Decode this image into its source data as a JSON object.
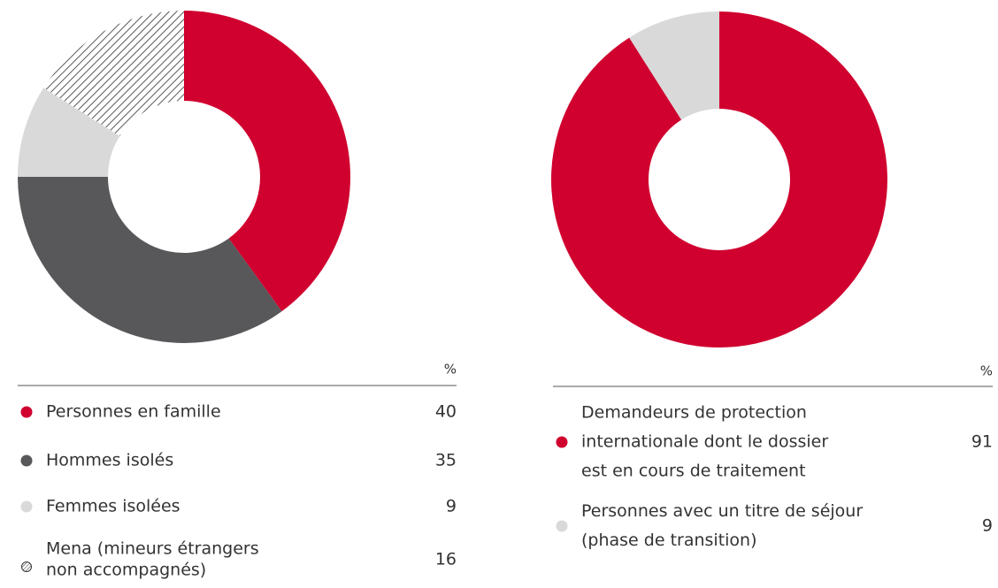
{
  "chart_data": [
    {
      "type": "pie",
      "unit": "%",
      "labels": [
        [
          "Personnes en famille"
        ],
        [
          "Hommes isolés"
        ],
        [
          "Femmes isolées"
        ],
        [
          "Mena (mineurs étrangers",
          "non accompagnés)"
        ]
      ],
      "values": [
        40,
        35,
        9,
        16
      ],
      "colors": [
        "#d0002f",
        "#58585a",
        "#d9d9d9",
        "hatch"
      ]
    },
    {
      "type": "pie",
      "unit": "%",
      "labels": [
        [
          "Demandeurs de protection",
          "internationale dont le dossier",
          "est en cours de traitement"
        ],
        [
          "Personnes avec un titre de séjour",
          "(phase de transition)"
        ]
      ],
      "values": [
        91,
        9
      ],
      "colors": [
        "#d0002f",
        "#d9d9d9"
      ]
    }
  ]
}
